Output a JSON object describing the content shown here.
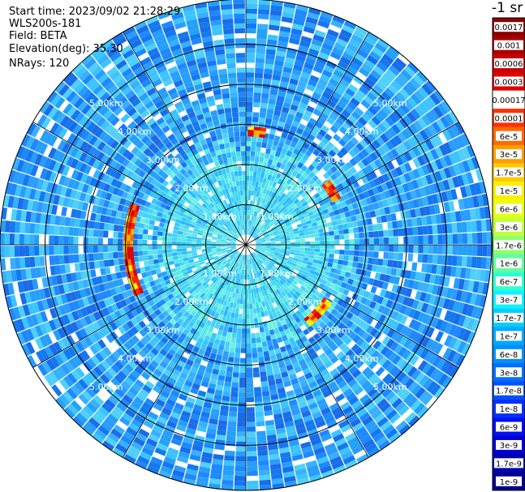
{
  "header": {
    "start_time": "Start time: 2023/09/02 21:28:29",
    "instrument": "WLS200s-181",
    "field": "Field: BETA",
    "elevation": "Elevation(deg): 35.30",
    "nrays": "NRays: 120"
  },
  "plot": {
    "range_ring_labels": [
      "1.00km",
      "2.00km",
      "3.00km",
      "4.00km",
      "5.00km"
    ],
    "range_rings_km": [
      1,
      2,
      3,
      4,
      5
    ],
    "max_range_km": 6.0,
    "n_rays": 120,
    "spoke_count": 12
  },
  "colorbar": {
    "unit": "-1 sr",
    "ticks": [
      "0.0017",
      "0.001",
      "0.0006",
      "0.0003",
      "0.00017",
      "0.0001",
      "6e-5",
      "3e-5",
      "1.7e-5",
      "1e-5",
      "6e-6",
      "3e-6",
      "1.7e-6",
      "1e-6",
      "6e-7",
      "3e-7",
      "1.7e-7",
      "1e-7",
      "6e-8",
      "3e-8",
      "1.7e-8",
      "1e-8",
      "6e-9",
      "3e-9",
      "1.7e-9",
      "1e-9"
    ],
    "colors": [
      "#8b0000",
      "#a80000",
      "#c80000",
      "#e00000",
      "#ffffff",
      "#ff3000",
      "#ff6a00",
      "#ff9c00",
      "#ffc800",
      "#ffee00",
      "#e8ff10",
      "#c0ff40",
      "#90ff70",
      "#60ffa0",
      "#30ffd0",
      "#10f0ff",
      "#00d0ff",
      "#00a8ff",
      "#0090ff",
      "#0070ff",
      "#0050ff",
      "#0030ff",
      "#0010f0",
      "#0000d0",
      "#0000b0",
      "#000090"
    ]
  },
  "colors": {
    "background_ring": "#1a90ff",
    "inner_field": "#40d8f0"
  }
}
